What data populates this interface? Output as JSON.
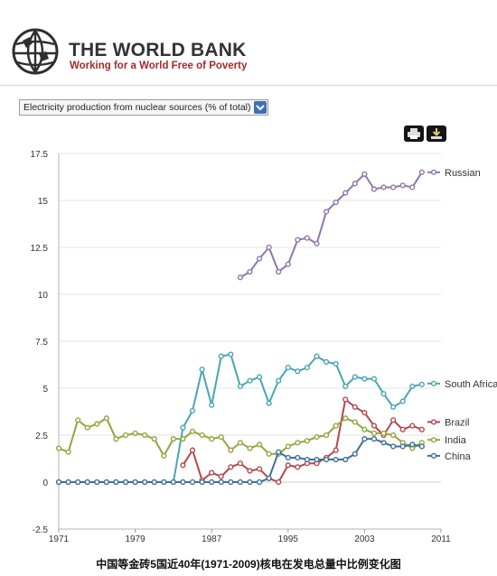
{
  "header": {
    "logo_icon": "world-bank-globe-logo",
    "brand_name": "THE WORLD BANK",
    "tagline": "Working for a World Free of Poverty"
  },
  "indicator_select": {
    "value": "Electricity production from nuclear sources (% of total)",
    "icon": "chevron-down-icon"
  },
  "toolbar": {
    "print_icon": "print-icon",
    "download_icon": "download-icon"
  },
  "caption": "中国等金砖5国近40年(1971-2009)核电在发电总量中比例变化图",
  "chart_data": {
    "type": "line",
    "x_tick_labels": [
      "1971",
      "1979",
      "1987",
      "1995",
      "2003",
      "2011"
    ],
    "y_tick_labels": [
      "-2.5",
      "0",
      "2.5",
      "5",
      "7.5",
      "10",
      "12.5",
      "15",
      "17.5"
    ],
    "xlim": [
      1971,
      2011
    ],
    "ylim": [
      -2.5,
      17.5
    ],
    "legend_placement": "right, at end of each line",
    "series": [
      {
        "name": "Russian",
        "color": "#8e77a8",
        "x": [
          1990,
          1991,
          1992,
          1993,
          1994,
          1995,
          1996,
          1997,
          1998,
          1999,
          2000,
          2001,
          2002,
          2003,
          2004,
          2005,
          2006,
          2007,
          2008,
          2009
        ],
        "values": [
          10.9,
          11.2,
          11.9,
          12.5,
          11.2,
          11.6,
          12.9,
          13.0,
          12.7,
          14.4,
          14.9,
          15.4,
          15.9,
          16.4,
          15.6,
          15.7,
          15.7,
          15.8,
          15.7,
          16.5
        ]
      },
      {
        "name": "South Africa",
        "color": "#48a6b3",
        "x": [
          1971,
          1972,
          1973,
          1974,
          1975,
          1976,
          1977,
          1978,
          1979,
          1980,
          1981,
          1982,
          1983,
          1984,
          1985,
          1986,
          1987,
          1988,
          1989,
          1990,
          1991,
          1992,
          1993,
          1994,
          1995,
          1996,
          1997,
          1998,
          1999,
          2000,
          2001,
          2002,
          2003,
          2004,
          2005,
          2006,
          2007,
          2008,
          2009
        ],
        "values": [
          0,
          0,
          0,
          0,
          0,
          0,
          0,
          0,
          0,
          0,
          0,
          0,
          0,
          2.9,
          3.8,
          6.0,
          4.1,
          6.7,
          6.8,
          5.1,
          5.4,
          5.6,
          4.2,
          5.4,
          6.1,
          5.9,
          6.1,
          6.7,
          6.4,
          6.3,
          5.1,
          5.6,
          5.5,
          5.5,
          4.7,
          4.0,
          4.3,
          5.1,
          5.2
        ]
      },
      {
        "name": "Brazil",
        "color": "#b5474b",
        "x": [
          1984,
          1985,
          1986,
          1987,
          1988,
          1989,
          1990,
          1991,
          1992,
          1993,
          1994,
          1995,
          1996,
          1997,
          1998,
          1999,
          2000,
          2001,
          2002,
          2003,
          2004,
          2005,
          2006,
          2007,
          2008,
          2009
        ],
        "values": [
          0.9,
          1.7,
          0.1,
          0.5,
          0.3,
          0.8,
          1.0,
          0.6,
          0.7,
          0.2,
          0.0,
          0.9,
          0.8,
          1.0,
          1.0,
          1.3,
          1.7,
          4.4,
          4.0,
          3.7,
          3.0,
          2.5,
          3.3,
          2.8,
          3.0,
          2.8
        ]
      },
      {
        "name": "India",
        "color": "#92a63d",
        "x": [
          1971,
          1972,
          1973,
          1974,
          1975,
          1976,
          1977,
          1978,
          1979,
          1980,
          1981,
          1982,
          1983,
          1984,
          1985,
          1986,
          1987,
          1988,
          1989,
          1990,
          1991,
          1992,
          1993,
          1994,
          1995,
          1996,
          1997,
          1998,
          1999,
          2000,
          2001,
          2002,
          2003,
          2004,
          2005,
          2006,
          2007,
          2008,
          2009
        ],
        "values": [
          1.8,
          1.6,
          3.3,
          2.9,
          3.1,
          3.4,
          2.3,
          2.5,
          2.6,
          2.5,
          2.3,
          1.4,
          2.3,
          2.3,
          2.7,
          2.5,
          2.3,
          2.4,
          1.7,
          2.1,
          1.8,
          2.0,
          1.5,
          1.5,
          1.9,
          2.1,
          2.2,
          2.4,
          2.5,
          3.0,
          3.4,
          3.2,
          2.8,
          2.6,
          2.6,
          2.5,
          2.1,
          1.8,
          2.1
        ]
      },
      {
        "name": "China",
        "color": "#3f6f97",
        "x": [
          1971,
          1972,
          1973,
          1974,
          1975,
          1976,
          1977,
          1978,
          1979,
          1980,
          1981,
          1982,
          1983,
          1984,
          1985,
          1986,
          1987,
          1988,
          1989,
          1990,
          1991,
          1992,
          1993,
          1994,
          1995,
          1996,
          1997,
          1998,
          1999,
          2000,
          2001,
          2002,
          2003,
          2004,
          2005,
          2006,
          2007,
          2008,
          2009
        ],
        "values": [
          0,
          0,
          0,
          0,
          0,
          0,
          0,
          0,
          0,
          0,
          0,
          0,
          0,
          0,
          0,
          0,
          0,
          0,
          0,
          0,
          0,
          0,
          0.2,
          1.6,
          1.3,
          1.3,
          1.2,
          1.2,
          1.2,
          1.2,
          1.2,
          1.5,
          2.3,
          2.3,
          2.1,
          1.9,
          1.9,
          2.0,
          1.9
        ]
      }
    ]
  }
}
